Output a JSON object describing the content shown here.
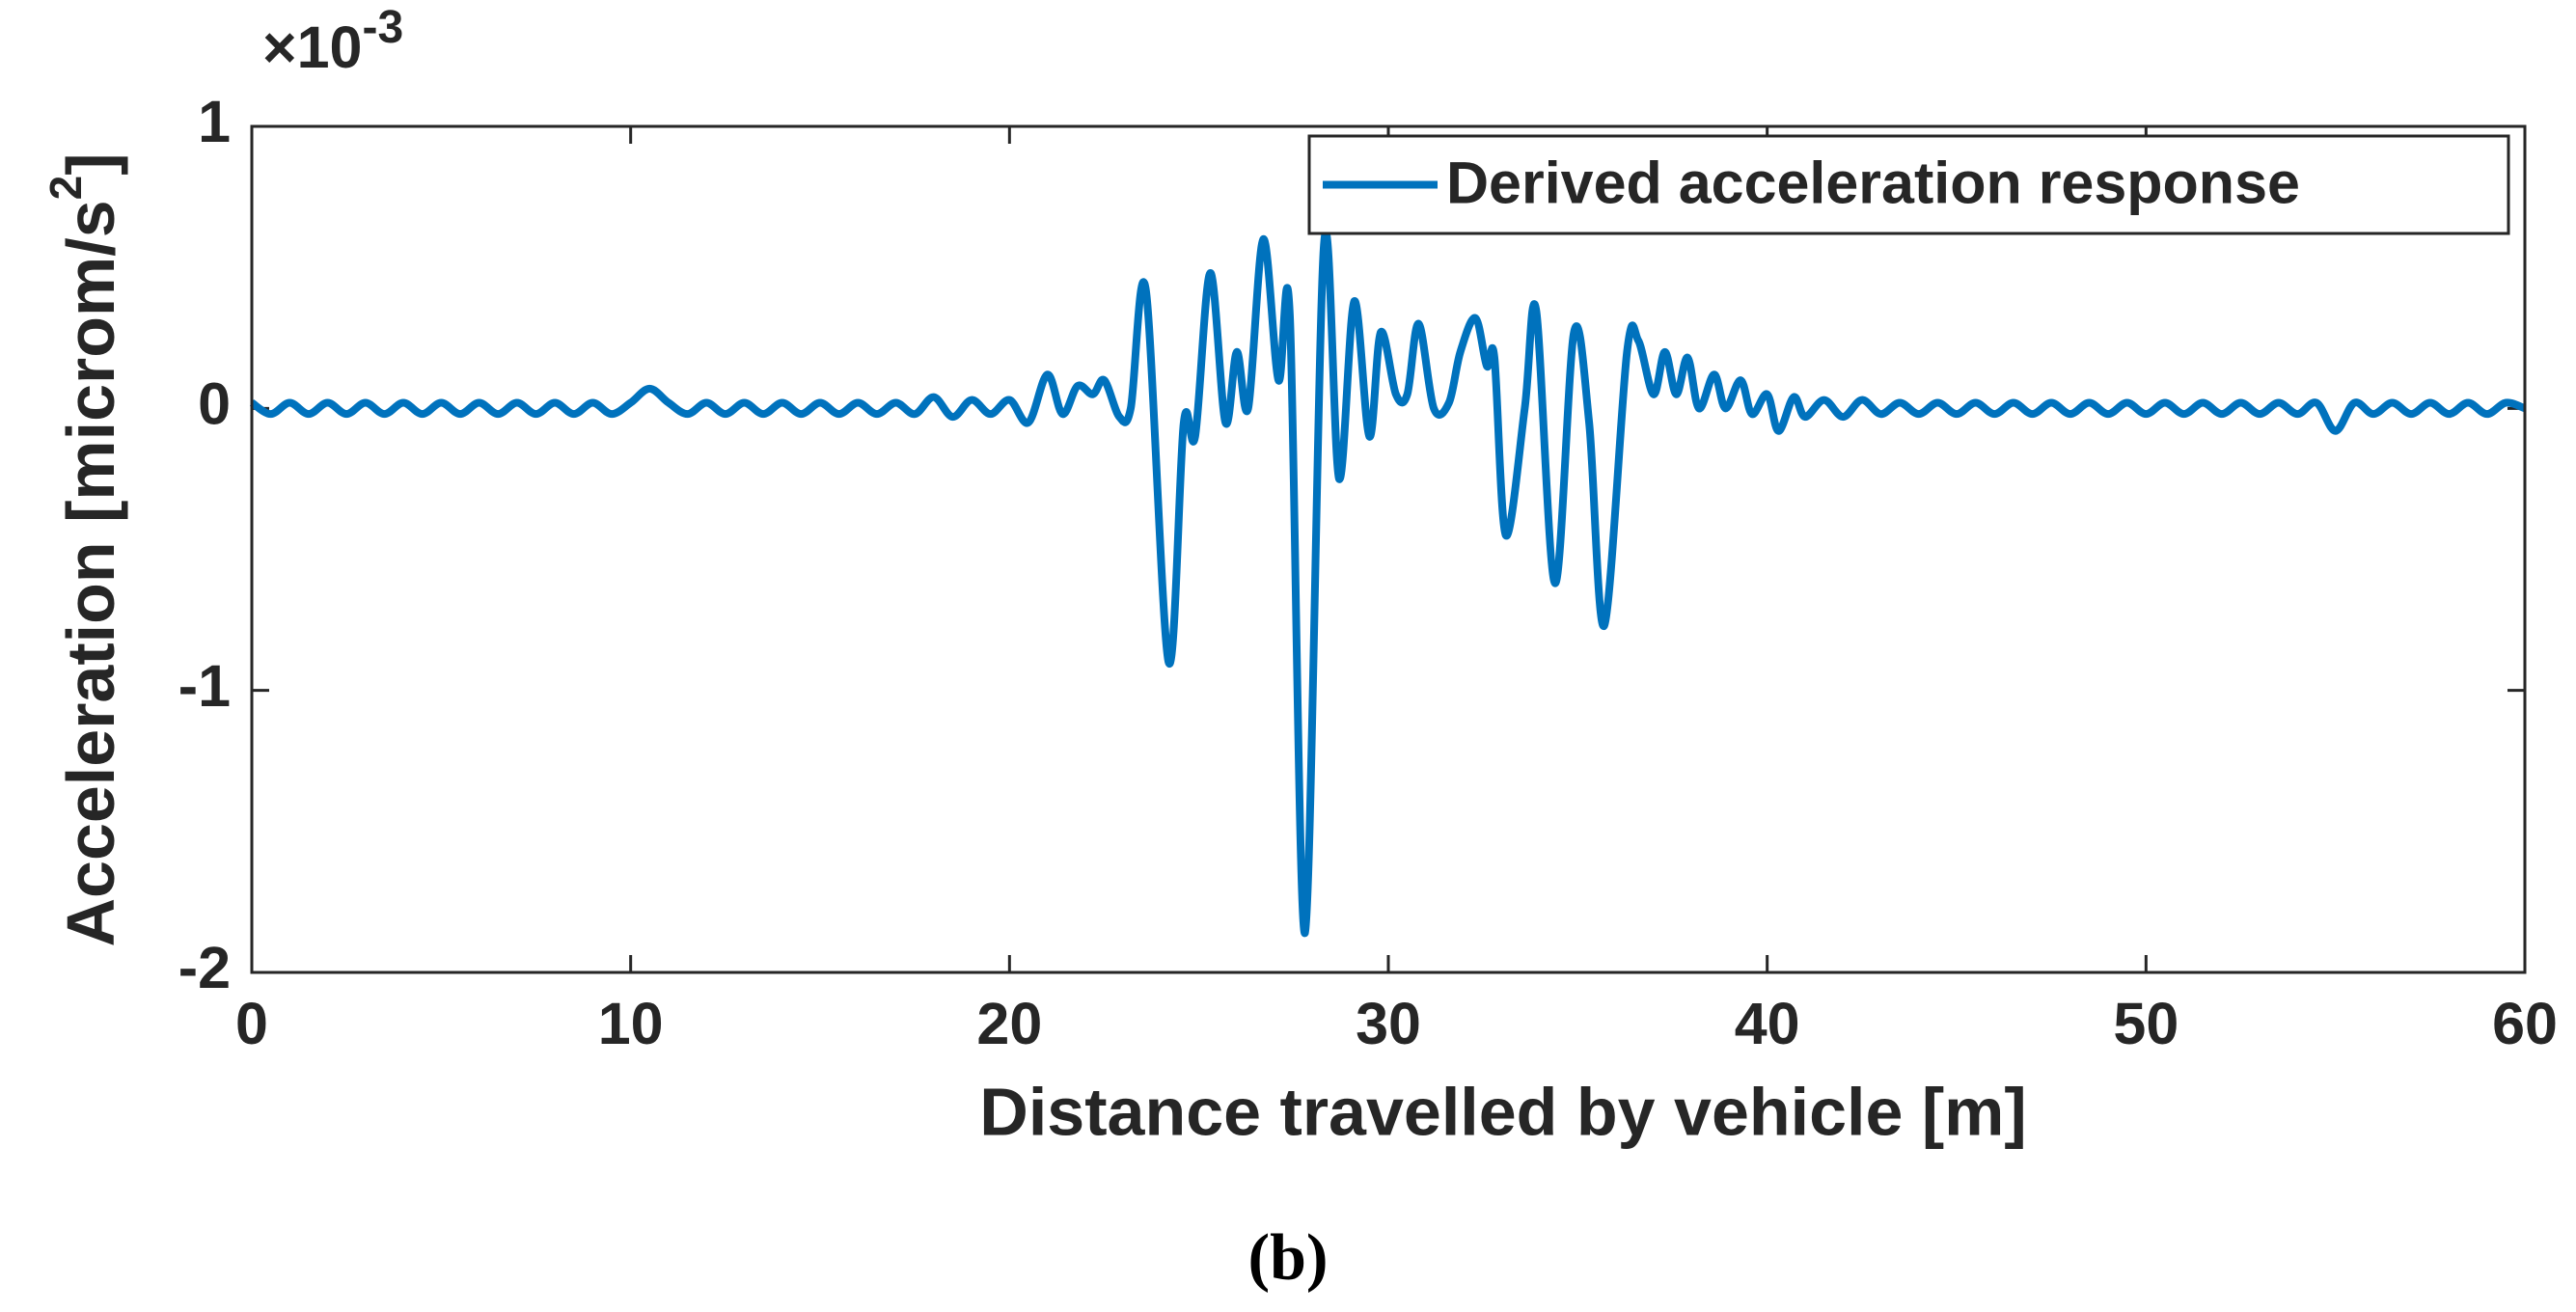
{
  "chart_data": {
    "type": "line",
    "ylabel": "Acceleration [microm/s",
    "ylabel_superscript": "2",
    "ylabel_end": "]",
    "xlabel": "Distance travelled by vehicle [m]",
    "y_multiplier": "×10",
    "y_multiplier_exponent": "-3",
    "caption": "(b)",
    "xlim": [
      0,
      60
    ],
    "xticks": [
      0,
      10,
      20,
      30,
      40,
      50,
      60
    ],
    "ylim": [
      -2,
      1
    ],
    "yticks": [
      -2,
      -1,
      0,
      1
    ],
    "legend": "upper right",
    "x": [
      0,
      0.5,
      1,
      1.5,
      2,
      2.5,
      3,
      3.5,
      4,
      4.5,
      5,
      5.5,
      6,
      6.5,
      7,
      7.5,
      8,
      8.5,
      9,
      9.5,
      10,
      10.5,
      11,
      11.5,
      12,
      12.5,
      13,
      13.5,
      14,
      14.5,
      15,
      15.5,
      16,
      16.5,
      17,
      17.5,
      18,
      18.5,
      19,
      19.5,
      20,
      20.5,
      21,
      21.4,
      21.8,
      22.2,
      22.5,
      22.9,
      23.2,
      23.6,
      24.2,
      24.6,
      24.9,
      25.3,
      25.7,
      26,
      26.3,
      26.7,
      27.1,
      27.4,
      27.8,
      28.3,
      28.7,
      29.1,
      29.5,
      29.8,
      30.2,
      30.5,
      30.8,
      31.2,
      31.6,
      31.9,
      32.3,
      32.6,
      32.8,
      33.1,
      33.6,
      33.9,
      34.4,
      34.9,
      35.3,
      35.7,
      36.3,
      36.6,
      37,
      37.3,
      37.6,
      37.9,
      38.2,
      38.6,
      38.9,
      39.3,
      39.6,
      40,
      40.3,
      40.7,
      41,
      41.5,
      42,
      42.5,
      43,
      43.5,
      44,
      44.5,
      45,
      45.5,
      46,
      46.5,
      47,
      47.5,
      48,
      48.5,
      49,
      49.5,
      50,
      50.5,
      51,
      51.5,
      52,
      52.5,
      53,
      53.5,
      54,
      54.5,
      55,
      55.5,
      56,
      56.5,
      57,
      57.5,
      58,
      58.5,
      59,
      59.5,
      60
    ],
    "series": [
      {
        "name": "Derived acceleration response",
        "color": "#0072bd",
        "values": [
          0.02,
          -0.02,
          0.02,
          -0.02,
          0.02,
          -0.02,
          0.02,
          -0.02,
          0.02,
          -0.02,
          0.02,
          -0.02,
          0.02,
          -0.02,
          0.02,
          -0.02,
          0.02,
          -0.02,
          0.02,
          -0.02,
          0.02,
          0.07,
          0.02,
          -0.02,
          0.02,
          -0.02,
          0.02,
          -0.02,
          0.02,
          -0.02,
          0.02,
          -0.02,
          0.02,
          -0.02,
          0.02,
          -0.02,
          0.04,
          -0.03,
          0.03,
          -0.02,
          0.03,
          -0.05,
          0.12,
          -0.02,
          0.08,
          0.05,
          0.1,
          -0.03,
          0,
          0.42,
          -0.9,
          -0.05,
          -0.1,
          0.48,
          -0.05,
          0.2,
          0,
          0.6,
          0.1,
          0.33,
          -1.86,
          0.58,
          -0.25,
          0.38,
          -0.1,
          0.27,
          0.05,
          0.05,
          0.3,
          0,
          0.02,
          0.2,
          0.32,
          0.15,
          0.18,
          -0.45,
          0,
          0.35,
          -0.62,
          0.27,
          -0.05,
          -0.77,
          0.2,
          0.24,
          0.05,
          0.2,
          0.05,
          0.18,
          0,
          0.12,
          0,
          0.1,
          -0.02,
          0.05,
          -0.08,
          0.04,
          -0.03,
          0.03,
          -0.03,
          0.03,
          -0.02,
          0.02,
          -0.02,
          0.02,
          -0.02,
          0.02,
          -0.02,
          0.02,
          -0.02,
          0.02,
          -0.02,
          0.02,
          -0.02,
          0.02,
          -0.02,
          0.02,
          -0.02,
          0.02,
          -0.02,
          0.02,
          -0.02,
          0.02,
          -0.02,
          0.02,
          -0.08,
          0.02,
          -0.02,
          0.02,
          -0.02,
          0.02,
          -0.02,
          0.02,
          -0.02,
          0.02,
          0
        ]
      }
    ]
  }
}
